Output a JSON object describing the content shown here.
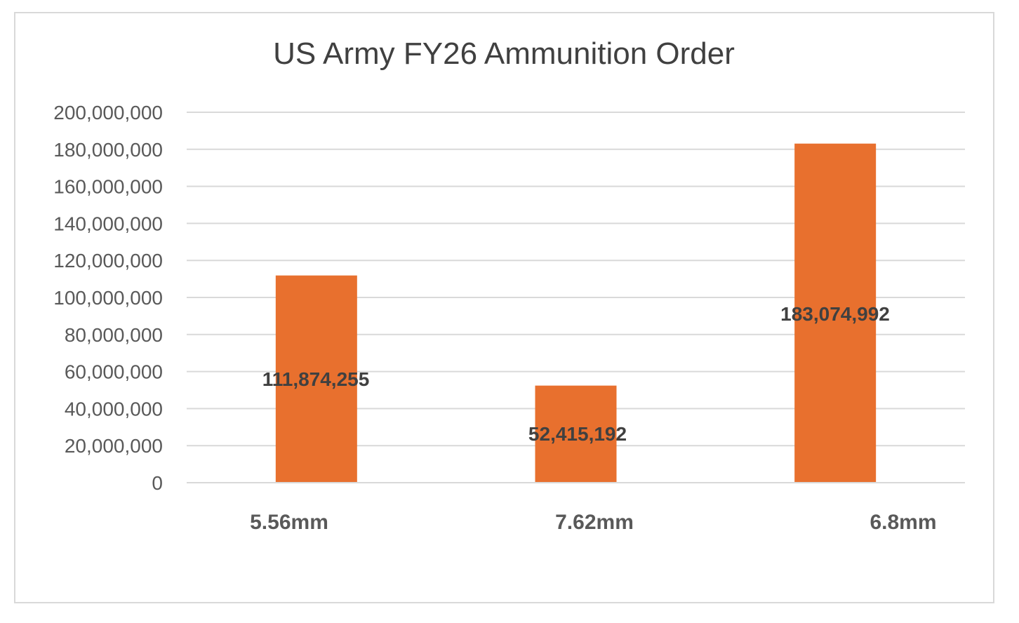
{
  "chart_data": {
    "type": "bar",
    "title": "US Army FY26 Ammunition Order",
    "categories": [
      "5.56mm",
      "7.62mm",
      "6.8mm"
    ],
    "values": [
      111874255,
      52415192,
      183074992
    ],
    "data_labels": [
      "111,874,255",
      "52,415,192",
      "183,074,992"
    ],
    "ylim": [
      0,
      200000000
    ],
    "yticks": [
      0,
      20000000,
      40000000,
      60000000,
      80000000,
      100000000,
      120000000,
      140000000,
      160000000,
      180000000,
      200000000
    ],
    "ytick_labels": [
      "0",
      "20,000,000",
      "40,000,000",
      "60,000,000",
      "80,000,000",
      "100,000,000",
      "120,000,000",
      "140,000,000",
      "160,000,000",
      "180,000,000",
      "200,000,000"
    ],
    "grid": true,
    "legend": "none",
    "bar_color": "#E8702E",
    "grid_color": "#d9d9d9"
  }
}
